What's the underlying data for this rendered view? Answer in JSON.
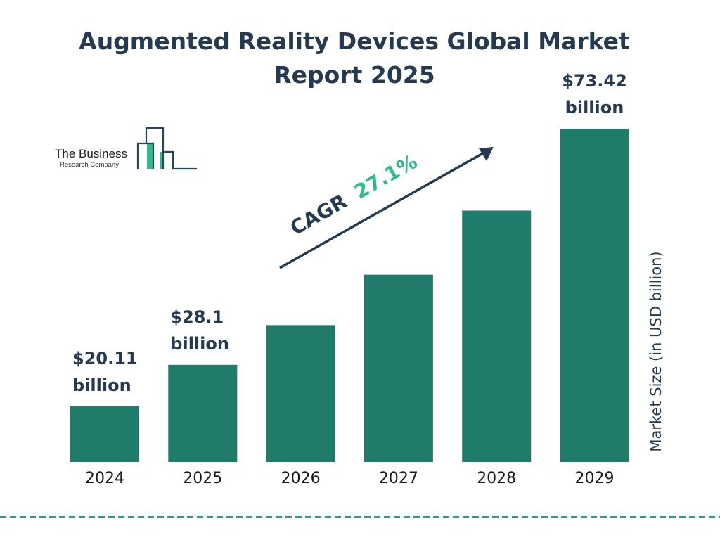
{
  "chart_data": {
    "type": "bar",
    "title": "Augmented Reality Devices Global Market Report 2025",
    "title_lines": [
      "Augmented Reality Devices Global Market",
      "Report 2025"
    ],
    "categories": [
      "2024",
      "2025",
      "2026",
      "2027",
      "2028",
      "2029"
    ],
    "values": [
      20.11,
      28.1,
      35.72,
      45.4,
      57.7,
      73.42
    ],
    "data_labels": [
      [
        "$20.11",
        "billion"
      ],
      [
        "$28.1",
        "billion"
      ],
      null,
      null,
      null,
      [
        "$73.42",
        "billion"
      ]
    ],
    "ylabel": "Market Size (in USD billion)",
    "xlabel": "",
    "grid": false,
    "annotation": {
      "prefix": "CAGR",
      "value": "27.1%"
    },
    "colors": {
      "bar": "#217b6b",
      "title": "#253a4f",
      "cagr": "#2dbb88",
      "dashed_line": "#2a9d8f"
    }
  },
  "logo": {
    "line1": "The Business",
    "line2": "Research Company"
  }
}
